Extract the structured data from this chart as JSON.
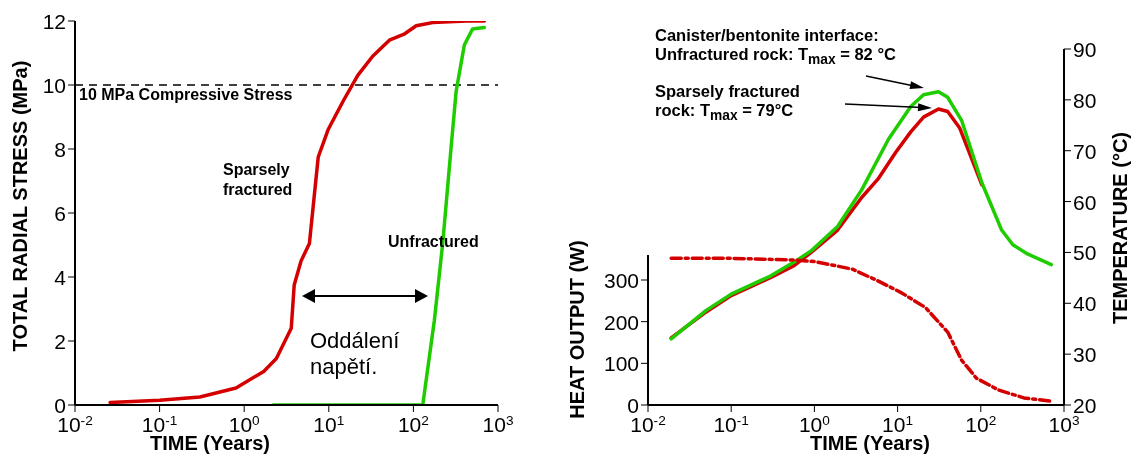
{
  "chart_data": [
    {
      "type": "line",
      "xlabel": "TIME (Years)",
      "ylabel": "TOTAL RADIAL STRESS (MPa)",
      "log": "x",
      "xlim": [
        0.01,
        1000
      ],
      "xticks": [
        {
          "value": 0.01,
          "label": "10$^{-2}$"
        },
        {
          "value": 0.1,
          "label": "10$^{-1}$"
        },
        {
          "value": 1,
          "label": "10$^{0}$"
        },
        {
          "value": 10,
          "label": "10$^{1}$"
        },
        {
          "value": 100,
          "label": "10$^{2}$"
        },
        {
          "value": 1000,
          "label": "10$^{3}$"
        }
      ],
      "ylim": [
        0,
        12
      ],
      "yticks": [
        0,
        2,
        4,
        6,
        8,
        10,
        12
      ],
      "grid": false,
      "series": [
        {
          "name": "Sparsely fractured",
          "color": "#d40000",
          "x": [
            0.026,
            0.1,
            0.3,
            0.8,
            1.7,
            2.4,
            3.6,
            3.9,
            4.7,
            5.9,
            7.5,
            9.8,
            14.8,
            22,
            33,
            52,
            79,
            108,
            169,
            423,
            690
          ],
          "values": [
            0.08,
            0.15,
            0.25,
            0.53,
            1.05,
            1.45,
            2.4,
            3.75,
            4.5,
            5.05,
            7.75,
            8.6,
            9.5,
            10.3,
            10.9,
            11.4,
            11.6,
            11.85,
            11.95,
            12,
            12
          ]
        },
        {
          "name": "Unfractured",
          "color": "#1ecc00",
          "x": [
            2.2,
            129,
            177,
            223,
            280,
            320,
            400,
            500,
            690
          ],
          "values": [
            0,
            0,
            2.65,
            5.1,
            8.1,
            9.8,
            11.25,
            11.75,
            11.8
          ]
        }
      ],
      "ref_lines": [
        {
          "axis": "y",
          "value": 10,
          "label": "10 MPa Compressive Stress",
          "color": "#000000",
          "line_style": "dashed"
        }
      ],
      "annotations": [
        "Oddálení napětí."
      ]
    },
    {
      "type": "line",
      "xlabel": "TIME (Years)",
      "ylabel": "HEAT OUTPUT (W)",
      "y2label": "TEMPERATURE (°C)",
      "log": "x",
      "xlim": [
        0.01,
        1000
      ],
      "xticks": [
        {
          "value": 0.01,
          "label": "10$^{-2}$"
        },
        {
          "value": 0.1,
          "label": "10$^{-1}$"
        },
        {
          "value": 1,
          "label": "10$^{0}$"
        },
        {
          "value": 10,
          "label": "10$^{1}$"
        },
        {
          "value": 100,
          "label": "10$^{2}$"
        },
        {
          "value": 1000,
          "label": "10$^{3}$"
        }
      ],
      "ylim": [
        0,
        360
      ],
      "yticks": [
        0,
        100,
        200,
        300
      ],
      "y2lim": [
        20,
        90
      ],
      "y2ticks": [
        20,
        30,
        40,
        50,
        60,
        70,
        80,
        90
      ],
      "grid": false,
      "series": [
        {
          "color": "#d40000",
          "axis": "y2",
          "x": [
            0.019,
            0.05,
            0.1,
            0.3,
            0.57,
            0.93,
            1.9,
            3.7,
            5.8,
            9.6,
            14.4,
            20.5,
            31,
            40,
            56,
            103
          ],
          "values": [
            33.2,
            38.3,
            41.5,
            45.1,
            47.4,
            50.1,
            54.4,
            60.8,
            64.4,
            69.8,
            73.7,
            76.6,
            78.2,
            77.7,
            74.4,
            63.3
          ]
        },
        {
          "color": "#1ecc00",
          "axis": "y2",
          "x": [
            0.019,
            0.05,
            0.1,
            0.3,
            0.57,
            0.93,
            1.9,
            3.7,
            7.8,
            14.4,
            20.5,
            31,
            40,
            59,
            103,
            178,
            243,
            364,
            704
          ],
          "values": [
            33.0,
            38.6,
            41.8,
            45.4,
            48.1,
            50.4,
            55.1,
            62.3,
            72.3,
            78.7,
            81.0,
            81.6,
            80.5,
            75.9,
            63.7,
            54.4,
            51.5,
            49.7,
            47.6
          ]
        },
        {
          "color": "#d40000",
          "axis": "y",
          "line_style": "dashed",
          "x": [
            0.019,
            0.1,
            0.57,
            1.03,
            2.86,
            5.8,
            11.2,
            21.6,
            40,
            59,
            89,
            163,
            330,
            704
          ],
          "values": [
            352,
            352,
            348,
            344,
            326,
            298,
            269,
            234,
            175,
            107,
            64,
            36,
            17,
            9
          ]
        }
      ],
      "annotations": [
        "Canister/bentonite interface: Unfractured rock: T$_{max}$ = 82 °C",
        "Sparsely fractured rock: T$_{max}$ = 79°C"
      ]
    }
  ]
}
